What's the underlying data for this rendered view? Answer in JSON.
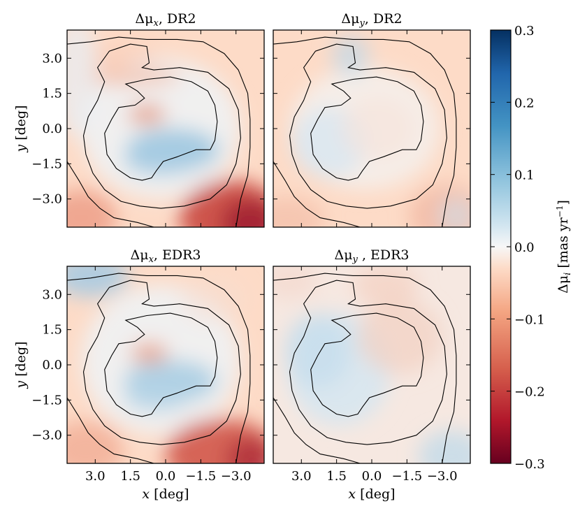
{
  "chart_data": {
    "type": "heatmap",
    "xlim": [
      4.2,
      -4.2
    ],
    "ylim": [
      -4.2,
      4.2
    ],
    "x_ticks": [
      3.0,
      1.5,
      0.0,
      -1.5,
      -3.0
    ],
    "y_ticks": [
      3.0,
      1.5,
      0.0,
      -1.5,
      -3.0
    ],
    "x_tick_labels": [
      "3.0",
      "1.5",
      "0.0",
      "−1.5",
      "−3.0"
    ],
    "y_tick_labels": [
      "3.0",
      "1.5",
      "0.0",
      "−1.5",
      "−3.0"
    ],
    "xlabel_var": "x",
    "ylabel_var": "y",
    "axis_unit": "[deg]",
    "panels": [
      {
        "title_sym": "Δμ",
        "title_sub": "x",
        "title_rest": ", DR2",
        "row": 0,
        "col": 0,
        "pattern": "mux_dr2"
      },
      {
        "title_sym": "Δμ",
        "title_sub": "y",
        "title_rest": ", DR2",
        "row": 0,
        "col": 1,
        "pattern": "muy_dr2"
      },
      {
        "title_sym": "Δμ",
        "title_sub": "x",
        "title_rest": ", EDR3",
        "row": 1,
        "col": 0,
        "pattern": "mux_edr3"
      },
      {
        "title_sym": "Δμ",
        "title_sub": "y",
        "title_rest": " , EDR3",
        "row": 1,
        "col": 1,
        "pattern": "muy_edr3"
      }
    ],
    "colorbar": {
      "colormap": "RdBu",
      "vmin": -0.3,
      "vmax": 0.3,
      "ticks": [
        0.3,
        0.2,
        0.1,
        0.0,
        -0.1,
        -0.2,
        -0.3
      ],
      "tick_labels": [
        "0.3",
        "0.2",
        "0.1",
        "0.0",
        "−0.1",
        "−0.2",
        "−0.3"
      ],
      "label": "Δμi [mas yr⁻¹]",
      "label_sym": "Δμ",
      "label_sub": "i",
      "label_unit": " [mas yr",
      "label_sup": "−1",
      "label_close": "]"
    },
    "colors": {
      "deep_blue": "#053061",
      "mid_blue": "#4393c3",
      "light_blue": "#d1e5f0",
      "white": "#f7f7f7",
      "light_red": "#fddbc7",
      "mid_red": "#d6604d",
      "deep_red": "#67001f",
      "contour": "#000000"
    }
  }
}
